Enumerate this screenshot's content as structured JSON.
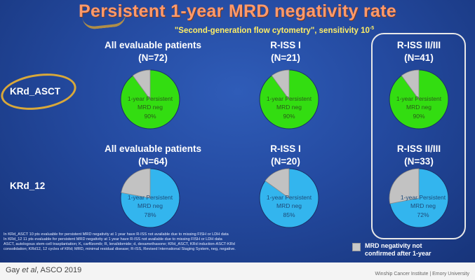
{
  "title": "Persistent 1-year MRD negativity rate",
  "subtitle": "\"Second-generation flow cytometry\", sensitivity 10",
  "subtitle_exp": "-5",
  "rows": [
    {
      "label": "KRd_ASCT"
    },
    {
      "label": "KRd_12"
    }
  ],
  "chart_data": [
    {
      "type": "pie",
      "group": "KRd_ASCT",
      "subgroup": "All evaluable patients",
      "n": "(N=72)",
      "slices": [
        {
          "name": "1-year Persistent MRD neg",
          "value": 90
        },
        {
          "name": "MRD negativity not confirmed after 1-year",
          "value": 10
        }
      ],
      "slice_label": "1-year Persistent MRD neg",
      "percent_label": "90%"
    },
    {
      "type": "pie",
      "group": "KRd_ASCT",
      "subgroup": "R-ISS I",
      "n": "(N=21)",
      "slices": [
        {
          "name": "1-year Persistent MRD neg",
          "value": 90
        },
        {
          "name": "MRD negativity not confirmed after 1-year",
          "value": 10
        }
      ],
      "slice_label": "1-year Persistent MRD neg",
      "percent_label": "90%"
    },
    {
      "type": "pie",
      "group": "KRd_ASCT",
      "subgroup": "R-ISS II/III",
      "n": "(N=41)",
      "slices": [
        {
          "name": "1-year Persistent MRD neg",
          "value": 90
        },
        {
          "name": "MRD negativity not confirmed after 1-year",
          "value": 10
        }
      ],
      "slice_label": "1-year Persistent MRD neg",
      "percent_label": "90%"
    },
    {
      "type": "pie",
      "group": "KRd_12",
      "subgroup": "All evaluable patients",
      "n": "(N=64)",
      "slices": [
        {
          "name": "1-year Persistent MRD neg",
          "value": 78
        },
        {
          "name": "MRD negativity not confirmed after 1-year",
          "value": 22
        }
      ],
      "slice_label": "1-year Persistent MRD neg",
      "percent_label": "78%"
    },
    {
      "type": "pie",
      "group": "KRd_12",
      "subgroup": "R-ISS I",
      "n": "(N=20)",
      "slices": [
        {
          "name": "1-year Persistent MRD neg",
          "value": 85
        },
        {
          "name": "MRD negativity not confirmed after 1-year",
          "value": 15
        }
      ],
      "slice_label": "1-year Persistent MRD neg",
      "percent_label": "85%"
    },
    {
      "type": "pie",
      "group": "KRd_12",
      "subgroup": "R-ISS II/III",
      "n": "(N=33)",
      "slices": [
        {
          "name": "1-year Persistent MRD neg",
          "value": 72
        },
        {
          "name": "MRD negativity not confirmed after 1-year",
          "value": 28
        }
      ],
      "slice_label": "1-year Persistent MRD neg",
      "percent_label": "72%"
    }
  ],
  "colors": {
    "asct_pie": "#33dd11",
    "krd12_pie": "#33b5ee",
    "not_confirmed": "#c2c2c2",
    "title": "#ff9a6b",
    "subtitle": "#ffee66"
  },
  "legend": {
    "label": "MRD negativity not confirmed after 1-year"
  },
  "footnotes": [
    "In KRd_ASCT 10 pts evaluable for persistent MRD negativity at 1 year have R-ISS not available due to missing FISH or LDH data",
    "In KRd_12 11 pts evaluable for persistent MRD negativity at 1 year have R-ISS not available due to missing FISH or LDH data",
    "ASCT, autologous stem-cell trasplantation; K, carfilzomib; R, lenalidomide; d, dexamethasone; KRd_ASCT, KRd induction-ASCT-KRd",
    "consolidation; KRd12, 12 cycles of KRd; MRD, minimal residual disease; R-ISS, Revised International Staging System, neg, negative."
  ],
  "citation": "Gay et al, ASCO 2019",
  "institution": "Winship Cancer Institute | Emory University"
}
